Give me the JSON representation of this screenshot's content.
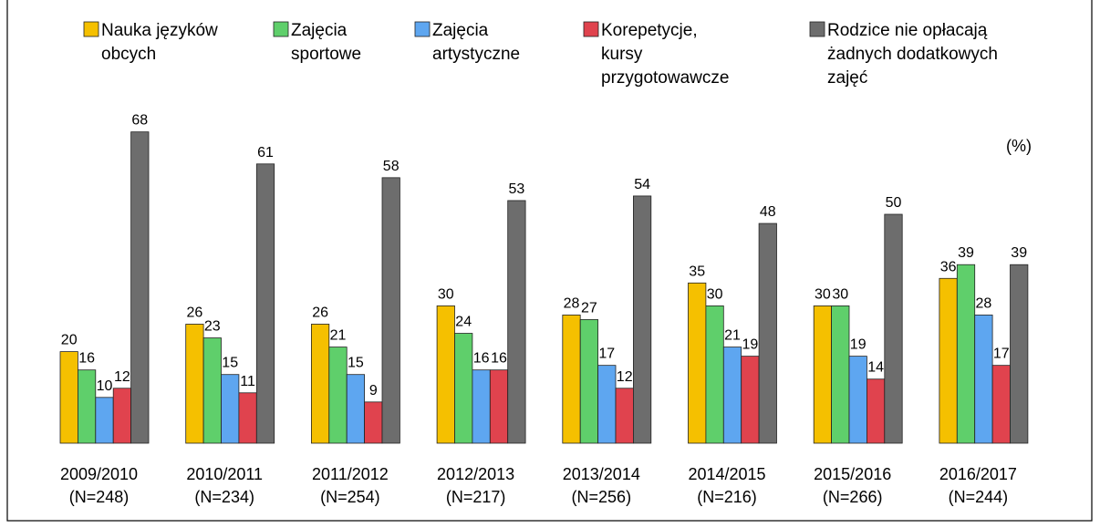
{
  "chart_data": {
    "type": "bar",
    "categories": [
      "2009/2010",
      "2010/2011",
      "2011/2012",
      "2012/2013",
      "2013/2014",
      "2014/2015",
      "2015/2016",
      "2016/2017"
    ],
    "category_notes": [
      "(N=248)",
      "(N=234)",
      "(N=254)",
      "(N=217)",
      "(N=256)",
      "(N=216)",
      "(N=266)",
      "(N=244)"
    ],
    "unit_label": "(%)",
    "series": [
      {
        "name": "Nauka języków\nobcych",
        "color": "#f5c000",
        "values": [
          20,
          26,
          26,
          30,
          28,
          35,
          30,
          36
        ]
      },
      {
        "name": "Zajęcia\nsportowe",
        "color": "#5fcf6b",
        "values": [
          16,
          23,
          21,
          24,
          27,
          30,
          30,
          39
        ]
      },
      {
        "name": "Zajęcia\nartystyczne",
        "color": "#5ea6f0",
        "values": [
          10,
          15,
          15,
          16,
          17,
          21,
          19,
          28
        ]
      },
      {
        "name": "Korepetycje,\nkursy\nprzygotowawcze",
        "color": "#e0434e",
        "values": [
          12,
          11,
          9,
          16,
          12,
          19,
          14,
          17
        ]
      },
      {
        "name": "Rodzice nie opłacają\nżadnych dodatkowych\nzajęć",
        "color": "#6d6d6d",
        "values": [
          68,
          61,
          58,
          53,
          54,
          48,
          50,
          39
        ]
      }
    ],
    "ylim": [
      0,
      70
    ],
    "grid": false
  }
}
